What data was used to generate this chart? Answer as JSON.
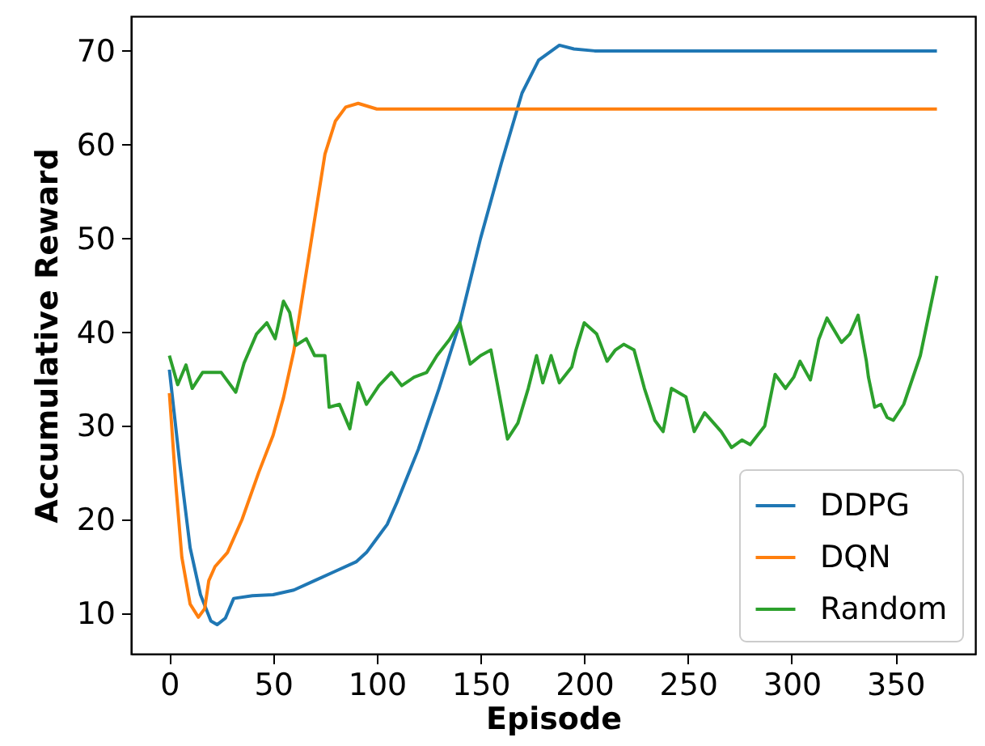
{
  "chart_data": {
    "type": "line",
    "xlabel": "Episode",
    "ylabel": "Accumulative Reward",
    "xlim": [
      -18.5,
      388.5
    ],
    "ylim": [
      5.7,
      73.7
    ],
    "xticks": [
      0,
      50,
      100,
      150,
      200,
      250,
      300,
      350
    ],
    "yticks": [
      10,
      20,
      30,
      40,
      50,
      60,
      70
    ],
    "grid": false,
    "legend": "bottom right",
    "series": [
      {
        "name": "DDPG",
        "color": "#1f77b4",
        "x": [
          0,
          5,
          10,
          15,
          20,
          23,
          27,
          31,
          40,
          50,
          60,
          70,
          80,
          90,
          95,
          100,
          105,
          110,
          120,
          130,
          140,
          150,
          160,
          170,
          178,
          188,
          195,
          205,
          370
        ],
        "values": [
          36,
          26,
          17,
          12,
          9.2,
          8.8,
          9.5,
          11.6,
          11.9,
          12,
          12.5,
          13.5,
          14.5,
          15.5,
          16.5,
          18,
          19.5,
          22,
          27.5,
          34,
          41,
          50,
          58,
          65.5,
          69,
          70.6,
          70.2,
          70,
          70
        ]
      },
      {
        "name": "DQN",
        "color": "#ff7f0e",
        "x": [
          0,
          3,
          6,
          10,
          14,
          17,
          19,
          22,
          28,
          35,
          43,
          50,
          55,
          60,
          65,
          70,
          75,
          80,
          85,
          91,
          100,
          370
        ],
        "values": [
          33.5,
          24,
          16,
          11,
          9.6,
          10.5,
          13.5,
          15,
          16.5,
          20,
          25,
          29,
          33,
          38,
          45,
          52,
          59,
          62.5,
          64,
          64.4,
          63.8,
          63.8
        ]
      },
      {
        "name": "Random",
        "color": "#2ca02c",
        "x": [
          0,
          4,
          8,
          11,
          16,
          25,
          32,
          36,
          42,
          47,
          51,
          55,
          58,
          61,
          66,
          70,
          75,
          77,
          82,
          87,
          91,
          95,
          101,
          107,
          112,
          118,
          124,
          129,
          135,
          140,
          145,
          150,
          155,
          158,
          163,
          168,
          173,
          177,
          180,
          184,
          188,
          194,
          196,
          200,
          206,
          211,
          215,
          219,
          224,
          229,
          234,
          238,
          242,
          249,
          253,
          258,
          266,
          271,
          276,
          280,
          287,
          292,
          297,
          301,
          304,
          309,
          313,
          317,
          324,
          328,
          332,
          336,
          337,
          340,
          343,
          346,
          349,
          354,
          362,
          370
        ],
        "values": [
          37.5,
          34.4,
          36.5,
          34,
          35.7,
          35.7,
          33.6,
          36.7,
          39.8,
          41,
          39.3,
          43.3,
          42.1,
          38.6,
          39.3,
          37.5,
          37.5,
          32,
          32.3,
          29.7,
          34.6,
          32.3,
          34.3,
          35.7,
          34.3,
          35.2,
          35.7,
          37.5,
          39.2,
          41,
          36.6,
          37.5,
          38.1,
          34.6,
          28.6,
          30.3,
          34,
          37.5,
          34.6,
          37.5,
          34.6,
          36.3,
          38.1,
          41,
          39.8,
          36.9,
          38.1,
          38.7,
          38.1,
          34,
          30.6,
          29.4,
          34,
          33.1,
          29.4,
          31.4,
          29.4,
          27.7,
          28.5,
          28,
          30,
          35.5,
          34,
          35.2,
          36.9,
          34.9,
          39.2,
          41.5,
          38.9,
          39.8,
          41.8,
          36.9,
          35.2,
          32,
          32.3,
          30.9,
          30.6,
          32.3,
          37.5,
          46
        ]
      }
    ]
  }
}
